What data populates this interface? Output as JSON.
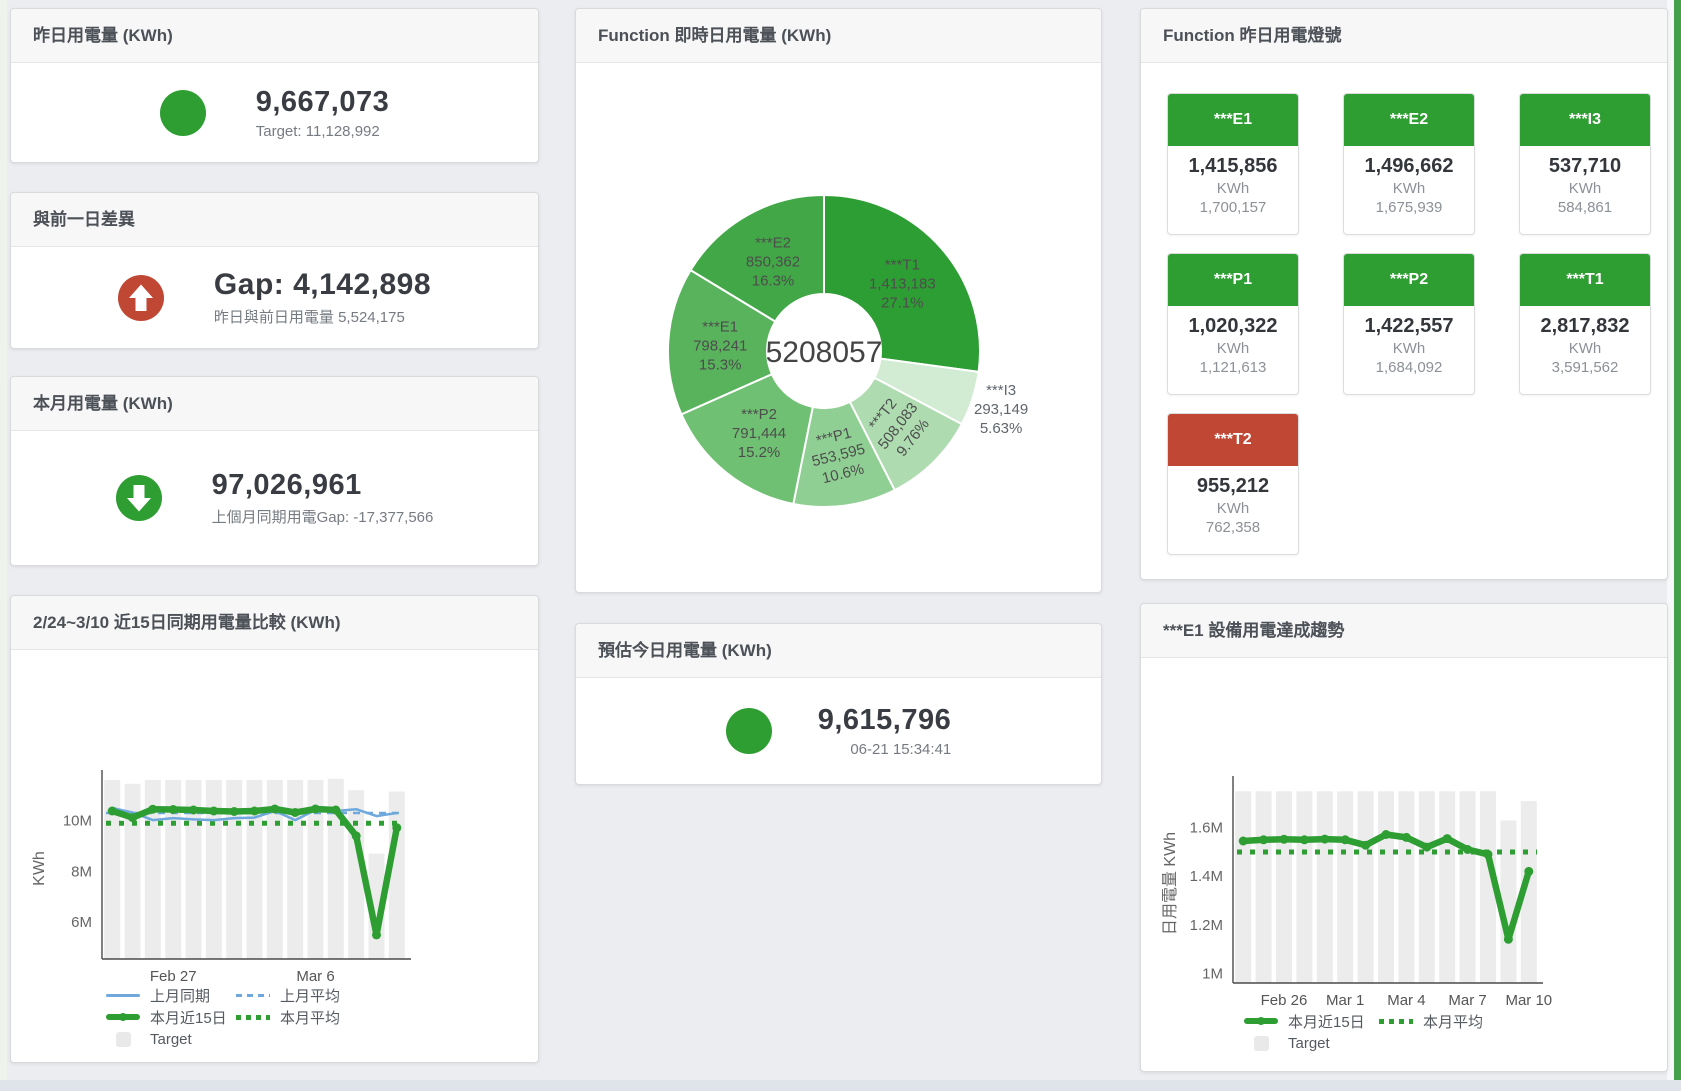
{
  "page": {
    "background": "#ebedf0",
    "accent_green": "#2e9e33",
    "accent_red": "#bf4733"
  },
  "cards": {
    "yesterday": {
      "title": "昨日用電量 (KWh)",
      "value": "9,667,073",
      "sub": "Target: 11,128,992",
      "icon": "circle",
      "icon_color": "#2e9e33"
    },
    "day_gap": {
      "title": "與前一日差異",
      "value": "Gap: 4,142,898",
      "sub": "昨日與前日用電量 5,524,175",
      "icon": "arrow-up",
      "icon_color": "#bf4733"
    },
    "month": {
      "title": "本月用電量 (KWh)",
      "value": "97,026,961",
      "sub": "上個月同期用電Gap: -17,377,566",
      "icon": "arrow-down",
      "icon_color": "#2e9e33"
    },
    "estimate": {
      "title": "預估今日用電量 (KWh)",
      "value": "9,615,796",
      "sub": "06-21 15:34:41",
      "icon": "circle",
      "icon_color": "#2e9e33"
    },
    "compare": {
      "title": "2/24~3/10 近15日同期用電量比較 (KWh)"
    },
    "realtime_donut": {
      "title": "Function 即時日用電量 (KWh)"
    },
    "lamp": {
      "title": "Function 昨日用電燈號"
    },
    "e1_trend": {
      "title": "***E1 設備用電達成趨勢"
    }
  },
  "lamp_tiles": [
    {
      "label": "***E1",
      "value": "1,415,856",
      "unit": "KWh",
      "target": "1,700,157",
      "color": "#2e9e33"
    },
    {
      "label": "***E2",
      "value": "1,496,662",
      "unit": "KWh",
      "target": "1,675,939",
      "color": "#2e9e33"
    },
    {
      "label": "***I3",
      "value": "537,710",
      "unit": "KWh",
      "target": "584,861",
      "color": "#2e9e33"
    },
    {
      "label": "***P1",
      "value": "1,020,322",
      "unit": "KWh",
      "target": "1,121,613",
      "color": "#2e9e33"
    },
    {
      "label": "***P2",
      "value": "1,422,557",
      "unit": "KWh",
      "target": "1,684,092",
      "color": "#2e9e33"
    },
    {
      "label": "***T1",
      "value": "2,817,832",
      "unit": "KWh",
      "target": "3,591,562",
      "color": "#2e9e33"
    },
    {
      "label": "***T2",
      "value": "955,212",
      "unit": "KWh",
      "target": "762,358",
      "color": "#bf4733"
    }
  ],
  "chart_data": [
    {
      "type": "pie",
      "title": "Function 即時日用電量 (KWh)",
      "center_label": "5208057",
      "unit": "KWh",
      "slices": [
        {
          "name": "***T1",
          "value": 1413183,
          "value_str": "1,413,183",
          "pct": "27.1%",
          "color": "#2d9e33",
          "label_pos": "inside",
          "rotate": 0
        },
        {
          "name": "***I3",
          "value": 293149,
          "value_str": "293,149",
          "pct": "5.63%",
          "color": "#d2ecd3",
          "label_pos": "outside",
          "rotate": 0
        },
        {
          "name": "***T2",
          "value": 508083,
          "value_str": "508,083",
          "pct": "9.76%",
          "color": "#aedcb0",
          "label_pos": "inside",
          "rotate": -52
        },
        {
          "name": "***P1",
          "value": 553595,
          "value_str": "553,595",
          "pct": "10.6%",
          "color": "#90cf93",
          "label_pos": "inside",
          "rotate": -14
        },
        {
          "name": "***P2",
          "value": 791444,
          "value_str": "791,444",
          "pct": "15.2%",
          "color": "#70c074",
          "label_pos": "inside",
          "rotate": 0
        },
        {
          "name": "***E1",
          "value": 798241,
          "value_str": "798,241",
          "pct": "15.3%",
          "color": "#58b35c",
          "label_pos": "inside",
          "rotate": 0
        },
        {
          "name": "***E2",
          "value": 850362,
          "value_str": "850,362",
          "pct": "16.3%",
          "color": "#42a847",
          "label_pos": "inside",
          "rotate": 0
        }
      ]
    },
    {
      "type": "bar+line",
      "title": "2/24~3/10 近15日同期用電量比較 (KWh)",
      "ylabel": "KWh",
      "unit": "million KWh",
      "x_range": "2/24 - 3/10 (15 days)",
      "y_min": 4.55,
      "y_max": 11.68,
      "y_ticks": [
        {
          "v": 6,
          "label": "6M"
        },
        {
          "v": 8,
          "label": "8M"
        },
        {
          "v": 10,
          "label": "10M"
        }
      ],
      "x_ticks": [
        {
          "i": 3,
          "label": "Feb 27"
        },
        {
          "i": 10,
          "label": "Mar 6"
        }
      ],
      "bars": {
        "name": "Target",
        "color": "#ececec",
        "values": [
          11.6,
          11.45,
          11.6,
          11.6,
          11.6,
          11.6,
          11.6,
          11.6,
          11.6,
          11.6,
          11.6,
          11.65,
          11.2,
          8.7,
          11.15
        ]
      },
      "series": [
        {
          "name": "上月同期",
          "color": "#6fa8dc",
          "width": 2.5,
          "markers": false,
          "values": [
            10.5,
            10.32,
            10.02,
            10.1,
            10.05,
            10.02,
            10.1,
            10.12,
            10.38,
            10.02,
            10.42,
            10.38,
            10.45,
            10.18,
            10.3
          ]
        },
        {
          "name": "本月近15日",
          "color": "#2e9e33",
          "width": 6.5,
          "markers": true,
          "values": [
            10.38,
            10.12,
            10.45,
            10.44,
            10.42,
            10.38,
            10.36,
            10.38,
            10.46,
            10.32,
            10.46,
            10.42,
            9.4,
            5.5,
            9.72
          ]
        }
      ],
      "avg_lines": [
        {
          "name": "上月平均",
          "color": "#6fa8dc",
          "value": 10.3,
          "width": 2.5,
          "dash": "7 6"
        },
        {
          "name": "本月平均",
          "color": "#2e9e33",
          "value": 9.9,
          "width": 5,
          "dash": "5 8"
        }
      ]
    },
    {
      "type": "bar+line",
      "title": "***E1 設備用電達成趨勢",
      "ylabel": "日用電量 KWh",
      "unit": "million KWh",
      "y_min": 0.96,
      "y_max": 1.78,
      "y_ticks": [
        {
          "v": 1,
          "label": "1M"
        },
        {
          "v": 1.2,
          "label": "1.2M"
        },
        {
          "v": 1.4,
          "label": "1.4M"
        },
        {
          "v": 1.6,
          "label": "1.6M"
        }
      ],
      "x_ticks": [
        {
          "i": 2,
          "label": "Feb 26"
        },
        {
          "i": 5,
          "label": "Mar 1"
        },
        {
          "i": 8,
          "label": "Mar 4"
        },
        {
          "i": 11,
          "label": "Mar 7"
        },
        {
          "i": 14,
          "label": "Mar 10"
        }
      ],
      "bars": {
        "name": "Target",
        "color": "#ececec",
        "values": [
          1.75,
          1.75,
          1.75,
          1.75,
          1.75,
          1.75,
          1.75,
          1.75,
          1.75,
          1.75,
          1.75,
          1.75,
          1.75,
          1.63,
          1.71
        ]
      },
      "series": [
        {
          "name": "本月近15日",
          "color": "#2e9e33",
          "width": 6.5,
          "markers": true,
          "values": [
            1.545,
            1.55,
            1.552,
            1.55,
            1.553,
            1.55,
            1.528,
            1.572,
            1.56,
            1.52,
            1.555,
            1.51,
            1.49,
            1.14,
            1.42
          ]
        }
      ],
      "avg_lines": [
        {
          "name": "本月平均",
          "color": "#2e9e33",
          "value": 1.5,
          "width": 5,
          "dash": "5 8"
        }
      ]
    }
  ]
}
